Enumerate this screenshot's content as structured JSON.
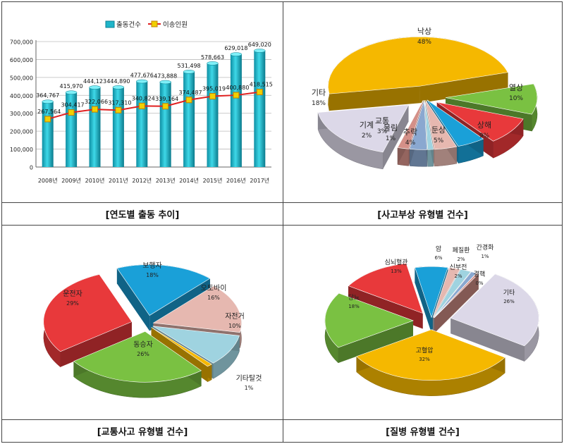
{
  "chart_data": [
    {
      "type": "bar",
      "caption": "[연도별 출동 추이]",
      "categories": [
        "2008년",
        "2009년",
        "2010년",
        "2011년",
        "2012년",
        "2013년",
        "2014년",
        "2015년",
        "2016년",
        "2017년"
      ],
      "series": [
        {
          "name": "출동건수",
          "kind": "bar",
          "color": "#1fb5c9",
          "values": [
            364767,
            415970,
            444123,
            444890,
            477676,
            473888,
            531498,
            578663,
            629018,
            649020
          ],
          "labels": [
            "364,767",
            "415,970",
            "444,123",
            "444,890",
            "477,676",
            "473,888",
            "531,498",
            "578,663",
            "629,018",
            "649,020"
          ]
        },
        {
          "name": "이송인원",
          "kind": "line",
          "color": "#e02020",
          "marker": "#f2d000",
          "values": [
            267564,
            304417,
            322066,
            317310,
            340824,
            339164,
            374487,
            395019,
            400880,
            418515
          ],
          "labels": [
            "267,564",
            "304,417",
            "322,066",
            "317,310",
            "340,824",
            "339,164",
            "374,487",
            "395,019",
            "400,880",
            "418,515"
          ]
        }
      ],
      "ylim": [
        0,
        700000
      ],
      "yticks": [
        "0",
        "100,000",
        "200,000",
        "300,000",
        "400,000",
        "500,000",
        "600,000",
        "700,000"
      ],
      "yticks_values": [
        0,
        100000,
        200000,
        300000,
        400000,
        500000,
        600000,
        700000
      ],
      "grid": true,
      "legend": "top"
    },
    {
      "type": "pie",
      "caption": "[사고부상 유형별 건수]",
      "slices": [
        {
          "label": "낙상",
          "value": 48,
          "pct": "48%",
          "color": "#f5b800"
        },
        {
          "label": "열상",
          "value": 10,
          "pct": "10%",
          "color": "#7ac142"
        },
        {
          "label": "상해",
          "value": 9,
          "pct": "9%",
          "color": "#e8393b"
        },
        {
          "label": "둔상",
          "value": 5,
          "pct": "5%",
          "color": "#1aa0d8"
        },
        {
          "label": "추락",
          "value": 4,
          "pct": "4%",
          "color": "#e6b8b0"
        },
        {
          "label": "물림",
          "value": 1,
          "pct": "1%",
          "color": "#9fd3e0"
        },
        {
          "label": "교통",
          "value": 3,
          "pct": "3%",
          "color": "#8aa8d0"
        },
        {
          "label": "기계",
          "value": 2,
          "pct": "2%",
          "color": "#d49088"
        },
        {
          "label": "기타",
          "value": 18,
          "pct": "18%",
          "color": "#dcd8e8"
        }
      ]
    },
    {
      "type": "pie",
      "caption": "[교통사고 유형별 건수]",
      "slices": [
        {
          "label": "보행자",
          "value": 18,
          "pct": "18%",
          "color": "#1aa0d8"
        },
        {
          "label": "오토바이",
          "value": 16,
          "pct": "16%",
          "color": "#e6b8b0"
        },
        {
          "label": "자전거",
          "value": 10,
          "pct": "10%",
          "color": "#9fd3e0"
        },
        {
          "label": "기타탈것",
          "value": 1,
          "pct": "1%",
          "color": "#f5b800"
        },
        {
          "label": "동승자",
          "value": 26,
          "pct": "26%",
          "color": "#7ac142"
        },
        {
          "label": "운전자",
          "value": 29,
          "pct": "29%",
          "color": "#e8393b"
        }
      ]
    },
    {
      "type": "pie",
      "caption": "[질병 유형별 건수]",
      "slices": [
        {
          "label": "암",
          "value": 6,
          "pct": "6%",
          "color": "#1aa0d8"
        },
        {
          "label": "폐질환",
          "value": 2,
          "pct": "2%",
          "color": "#e6b8b0"
        },
        {
          "label": "신부전",
          "value": 2,
          "pct": "2%",
          "color": "#9fd3e0"
        },
        {
          "label": "간경화",
          "value": 1,
          "pct": "1%",
          "color": "#8aa8d0"
        },
        {
          "label": "결핵",
          "value": 0,
          "pct": "0%",
          "color": "#d49088"
        },
        {
          "label": "기타",
          "value": 26,
          "pct": "26%",
          "color": "#dcd8e8"
        },
        {
          "label": "고혈압",
          "value": 32,
          "pct": "32%",
          "color": "#f5b800"
        },
        {
          "label": "당뇨",
          "value": 18,
          "pct": "18%",
          "color": "#7ac142"
        },
        {
          "label": "심뇌혈관",
          "value": 13,
          "pct": "13%",
          "color": "#e8393b"
        }
      ]
    }
  ]
}
